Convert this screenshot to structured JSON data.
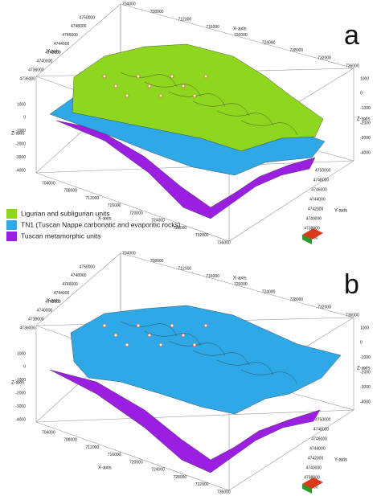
{
  "panels": [
    {
      "label": "a",
      "x_axis_label": "X-axis",
      "y_axis_label": "Y-axis",
      "z_axis_label": "Z-axis",
      "top_x_ticks": [
        704000,
        708000,
        712000,
        716000,
        720000,
        724000,
        728000,
        732000,
        736000
      ],
      "left_y_ticks": [
        4750000,
        4748000,
        4746000,
        4744000,
        4742000,
        4740000,
        4738000,
        4736000
      ],
      "left_z_ticks": [
        1000,
        0,
        -1000,
        -2000,
        -3000,
        -4000
      ],
      "bottom_x_ticks": [
        704000,
        708000,
        712000,
        716000,
        720000,
        724000,
        728000,
        732000,
        736000
      ],
      "right_y_ticks": [
        4750000,
        4748000,
        4746000,
        4744000,
        4742000,
        4740000,
        4738000,
        4736000
      ],
      "right_z_ticks": [
        1000,
        0,
        -1000,
        -2000,
        -3000,
        -4000
      ],
      "legend": [
        "Ligurian and subligurian units",
        "TN1 (Tuscan Nappe carbonatic and evaporitic rocks)",
        "Tuscan metamorphic units"
      ]
    },
    {
      "label": "b",
      "x_axis_label": "X-axis",
      "y_axis_label": "Y-axis",
      "z_axis_label": "Z-axis",
      "top_x_ticks": [
        704000,
        708000,
        712000,
        716000,
        720000,
        724000,
        728000,
        732000,
        736000
      ],
      "left_y_ticks": [
        4750000,
        4748000,
        4746000,
        4744000,
        4742000,
        4740000,
        4738000,
        4736000
      ],
      "left_z_ticks": [
        1000,
        0,
        -1000,
        -2000,
        -3000,
        -4000
      ],
      "bottom_x_ticks": [
        704000,
        708000,
        712000,
        716000,
        720000,
        724000,
        728000,
        732000,
        736000
      ],
      "right_y_ticks": [
        4750000,
        4748000,
        4746000,
        4744000,
        4742000,
        4740000,
        4738000,
        4736000
      ],
      "right_z_ticks": [
        1000,
        0,
        -1000,
        -2000,
        -3000,
        -4000
      ]
    }
  ]
}
